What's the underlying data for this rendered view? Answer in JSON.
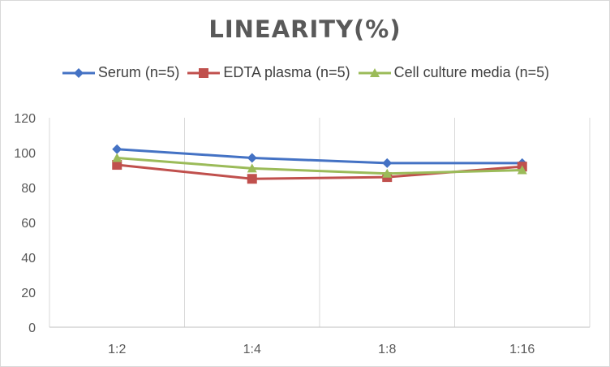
{
  "chart_data": {
    "type": "line",
    "title": "LINEARITY(%)",
    "categories": [
      "1:2",
      "1:4",
      "1:8",
      "1:16"
    ],
    "series": [
      {
        "name": "Serum (n=5)",
        "values": [
          102,
          97,
          94,
          94
        ],
        "color": "#4472c4",
        "marker": "diamond"
      },
      {
        "name": "EDTA plasma (n=5)",
        "values": [
          93,
          85,
          86,
          92
        ],
        "color": "#c0504d",
        "marker": "square"
      },
      {
        "name": "Cell culture media (n=5)",
        "values": [
          97,
          91,
          88,
          90
        ],
        "color": "#9bbb59",
        "marker": "triangle"
      }
    ],
    "ylim": [
      0,
      120
    ],
    "yticks": [
      "0",
      "20",
      "40",
      "60",
      "80",
      "100",
      "120"
    ],
    "grid": "vertical",
    "legend": "top",
    "xlabel": "",
    "ylabel": ""
  }
}
